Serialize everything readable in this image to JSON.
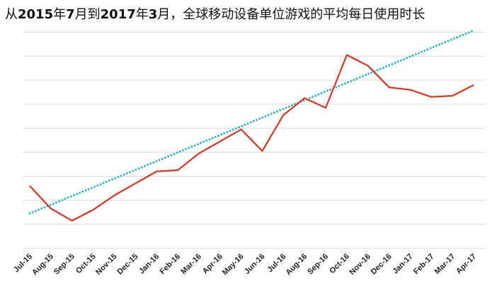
{
  "chart_data": {
    "type": "line",
    "title": "从2015年7月到2017年3月，全球移动设备单位游戏的平均每日使用时长",
    "categories": [
      "Jul-15",
      "Aug-15",
      "Sep-15",
      "Oct-15",
      "Nov-15",
      "Dec-15",
      "Jan-16",
      "Feb-16",
      "Mar-16",
      "Apr-16",
      "May-16",
      "Jun-16",
      "Jul-16",
      "Aug-16",
      "Sep-16",
      "Oct-16",
      "Nov-16",
      "Dec-16",
      "Jan-17",
      "Feb-17",
      "Mar-17",
      "Apr-17"
    ],
    "series": [
      {
        "values": [
          2.6,
          1.65,
          1.15,
          1.6,
          2.2,
          2.7,
          3.2,
          3.25,
          3.95,
          4.45,
          4.95,
          4.05,
          5.55,
          6.25,
          5.85,
          8.05,
          7.6,
          6.7,
          6.6,
          6.3,
          6.35,
          6.8
        ],
        "color": "#e0301e"
      },
      {
        "values": [
          1.45,
          1.8129,
          2.1757,
          2.5386,
          2.9014,
          3.2643,
          3.6271,
          3.99,
          4.3529,
          4.7157,
          5.0786,
          5.4414,
          5.8043,
          6.1671,
          6.53,
          6.8929,
          7.2557,
          7.6186,
          7.9814,
          8.3443,
          8.7071,
          9.07
        ],
        "color": "#2fb8c7",
        "style": "dotted"
      }
    ],
    "ylim": [
      0,
      10
    ],
    "grid": true,
    "legend": "none"
  }
}
